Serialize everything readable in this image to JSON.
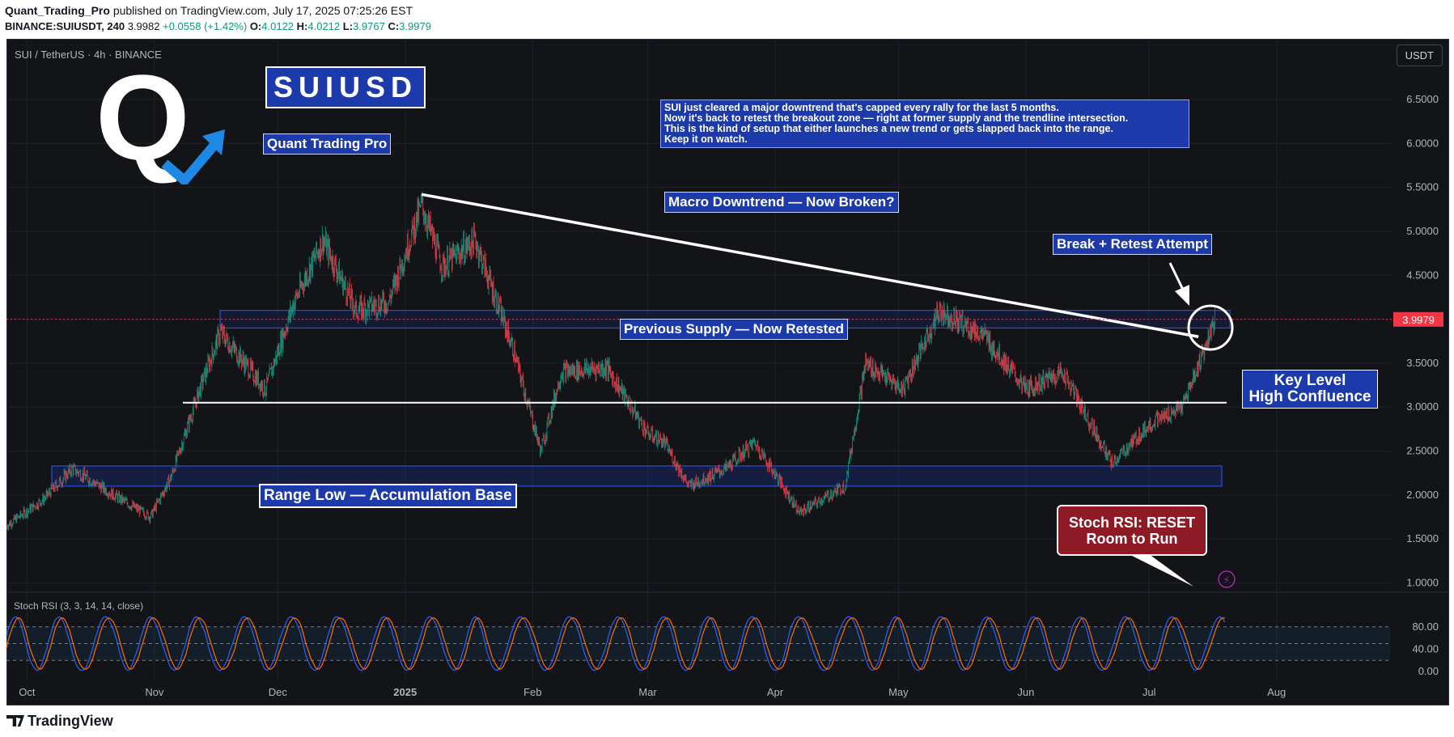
{
  "header": {
    "author": "Quant_Trading_Pro",
    "published": "published on TradingView.com, July 17, 2025 07:25:26 EST",
    "symbol_line": "BINANCE:SUIUSDT, 240",
    "last": "3.9982",
    "change": "+0.0558 (+1.42%)",
    "o_label": "O:",
    "o": "4.0122",
    "h_label": "H:",
    "h": "4.0212",
    "l_label": "L:",
    "l": "3.9767",
    "c_label": "C:",
    "c": "3.9979"
  },
  "chart_title": "SUI / TetherUS · 4h · BINANCE",
  "currency_button": "USDT",
  "price_tag": "3.9979",
  "brand": {
    "logo_letter": "Q",
    "ticker_box": "SUIUSD",
    "name_box": "Quant Trading Pro"
  },
  "annotations": {
    "note_lines": [
      "SUI just cleared a major downtrend that's capped every rally for the last 5 months.",
      "Now it's back to retest the breakout zone — right at former supply and the trendline intersection.",
      "This is the kind of setup that either launches a new trend or gets slapped back into the range.",
      "Keep it on watch."
    ],
    "macro": "Macro Downtrend — Now Broken?",
    "break_retest": "Break + Retest Attempt",
    "supply": "Previous Supply — Now Retested",
    "key_level_1": "Key Level",
    "key_level_2": "High Confluence",
    "range_low": "Range Low — Accumulation Base",
    "stoch_1": "Stoch RSI: RESET",
    "stoch_2": "Room to Run"
  },
  "stoch_label": "Stoch RSI (3, 3, 14, 14, close)",
  "footer_brand": "TradingView",
  "colors": {
    "background": "#131417",
    "annotation_blue": "#1c3aa9",
    "candle_up": "#089981",
    "candle_down": "#f23645",
    "stoch_k": "#2962ff",
    "stoch_d": "#ff6d00",
    "price_tag": "#f23645",
    "callout_red": "#8e1a26"
  },
  "chart_data": {
    "type": "candlestick",
    "title": "SUI / TetherUS · 4h · BINANCE",
    "x_labels": [
      "Oct",
      "Nov",
      "Dec",
      "2025",
      "Feb",
      "Mar",
      "Apr",
      "May",
      "Jun",
      "Jul",
      "Aug"
    ],
    "y_ticks": [
      "6.5000",
      "6.0000",
      "5.5000",
      "5.0000",
      "4.5000",
      "4.0000",
      "3.5000",
      "3.0000",
      "2.5000",
      "2.0000",
      "1.5000",
      "1.0000"
    ],
    "ylim": [
      0.75,
      6.85
    ],
    "price_path_approx": [
      [
        "Sep 26",
        1.65
      ],
      [
        "Oct 5",
        1.95
      ],
      [
        "Oct 12",
        2.3
      ],
      [
        "Oct 22",
        2.0
      ],
      [
        "Oct 31",
        1.75
      ],
      [
        "Nov 5",
        2.2
      ],
      [
        "Nov 12",
        3.2
      ],
      [
        "Nov 17",
        3.85
      ],
      [
        "Nov 28",
        3.2
      ],
      [
        "Dec 5",
        4.2
      ],
      [
        "Dec 12",
        4.9
      ],
      [
        "Dec 20",
        4.1
      ],
      [
        "Dec 28",
        4.2
      ],
      [
        "Jan 5",
        5.3
      ],
      [
        "Jan 10",
        4.6
      ],
      [
        "Jan 18",
        4.9
      ],
      [
        "Jan 27",
        3.7
      ],
      [
        "Feb 3",
        2.5
      ],
      [
        "Feb 8",
        3.4
      ],
      [
        "Feb 19",
        3.45
      ],
      [
        "Mar 1",
        2.7
      ],
      [
        "Mar 5",
        2.6
      ],
      [
        "Mar 11",
        2.1
      ],
      [
        "Mar 20",
        2.3
      ],
      [
        "Mar 27",
        2.6
      ],
      [
        "Apr 7",
        1.8
      ],
      [
        "Apr 18",
        2.1
      ],
      [
        "Apr 23",
        3.5
      ],
      [
        "May 2",
        3.2
      ],
      [
        "May 11",
        4.1
      ],
      [
        "May 22",
        3.8
      ],
      [
        "Jun 1",
        3.2
      ],
      [
        "Jun 10",
        3.4
      ],
      [
        "Jun 22",
        2.35
      ],
      [
        "Jul 1",
        2.8
      ],
      [
        "Jul 9",
        3.0
      ],
      [
        "Jul 14",
        3.6
      ],
      [
        "Jul 17",
        3.998
      ]
    ],
    "last_price": 3.9979,
    "levels": {
      "supply_zone": [
        3.9,
        4.1
      ],
      "key_level": 3.05,
      "range_low_zone": [
        2.1,
        2.33
      ]
    },
    "trendline": [
      [
        "Jan 5",
        5.42
      ],
      [
        "Jul 13",
        3.8
      ]
    ],
    "stoch_rsi": {
      "settings": "3, 3, 14, 14, close",
      "ticks": [
        "80.00",
        "40.00",
        "0.00"
      ],
      "bands": [
        80,
        20
      ]
    }
  }
}
